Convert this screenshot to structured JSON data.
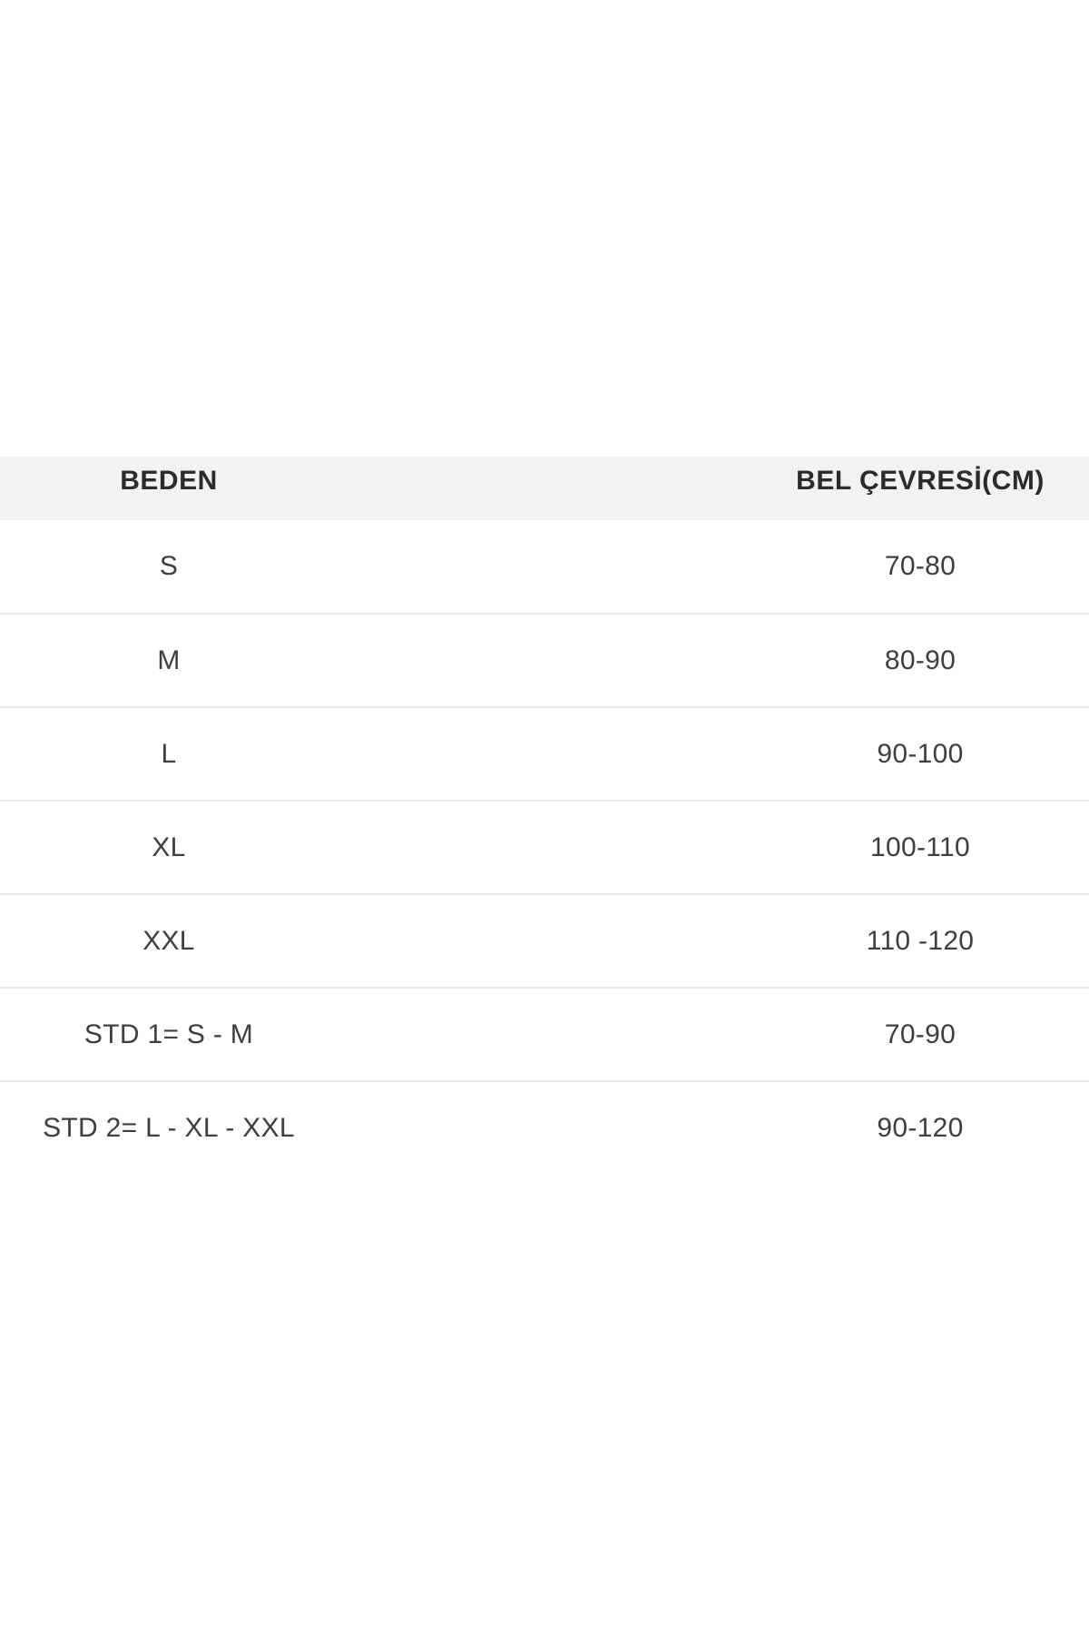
{
  "page": {
    "background_color": "#ffffff"
  },
  "table": {
    "headers": {
      "size": "BEDEN",
      "waist": "BEL ÇEVRESİ(CM)"
    },
    "rows": [
      {
        "size": "S",
        "waist": "70-80"
      },
      {
        "size": "M",
        "waist": "80-90"
      },
      {
        "size": "L",
        "waist": "90-100"
      },
      {
        "size": "XL",
        "waist": "100-110"
      },
      {
        "size": "XXL",
        "waist": "110 -120"
      },
      {
        "size": "STD 1= S - M",
        "waist": "70-90"
      },
      {
        "size": "STD 2= L - XL - XXL",
        "waist": "90-120"
      }
    ],
    "colors": {
      "header_background": "#f2f2f2",
      "header_text": "#2b2b2b",
      "body_text": "#3e3e3e",
      "divider": "#e7e7e7"
    }
  },
  "chart_data": {
    "type": "table",
    "title": "",
    "columns": [
      "BEDEN",
      "BEL ÇEVRESİ(CM)"
    ],
    "rows": [
      [
        "S",
        "70-80"
      ],
      [
        "M",
        "80-90"
      ],
      [
        "L",
        "90-100"
      ],
      [
        "XL",
        "100-110"
      ],
      [
        "XXL",
        "110 -120"
      ],
      [
        "STD 1= S - M",
        "70-90"
      ],
      [
        "STD 2= L - XL - XXL",
        "90-120"
      ]
    ]
  }
}
